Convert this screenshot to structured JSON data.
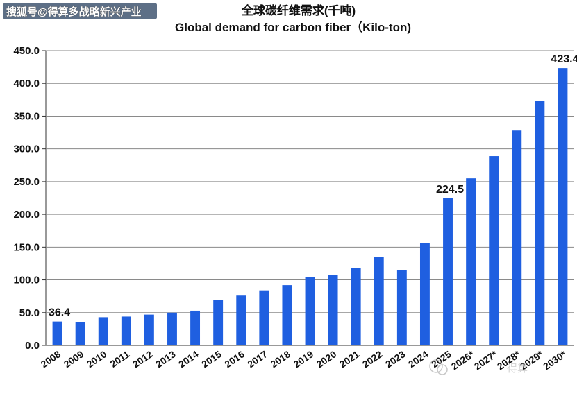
{
  "watermark": {
    "top_left": "搜狐号@得算多战略新兴产业",
    "bottom_right": "得算"
  },
  "chart_data": {
    "type": "bar",
    "title": "全球碳纤维需求(千吨)",
    "subtitle": "Global demand for carbon fiber（Kilo-ton)",
    "categories": [
      "2008",
      "2009",
      "2010",
      "2011",
      "2012",
      "2013",
      "2014",
      "2015",
      "2016",
      "2017",
      "2018",
      "2019",
      "2020",
      "2021",
      "2022",
      "2023",
      "2024",
      "2025",
      "2026*",
      "2027*",
      "2028*",
      "2029*",
      "2030*"
    ],
    "values": [
      36.4,
      35,
      43,
      44,
      47,
      50,
      53,
      69,
      76,
      84,
      92,
      104,
      107,
      118,
      135,
      115,
      156,
      224.5,
      255,
      289,
      328,
      373,
      423.4
    ],
    "ylim": [
      0,
      450
    ],
    "yticks": [
      "0.0",
      "50.0",
      "100.0",
      "150.0",
      "200.0",
      "250.0",
      "300.0",
      "350.0",
      "400.0",
      "450.0"
    ],
    "grid": true,
    "bar_color": "#1f5fe0",
    "annotations": [
      {
        "index": 0,
        "text": "36.4"
      },
      {
        "index": 17,
        "text": "224.5"
      },
      {
        "index": 22,
        "text": "423.4"
      }
    ],
    "xlabel": "",
    "ylabel": ""
  }
}
